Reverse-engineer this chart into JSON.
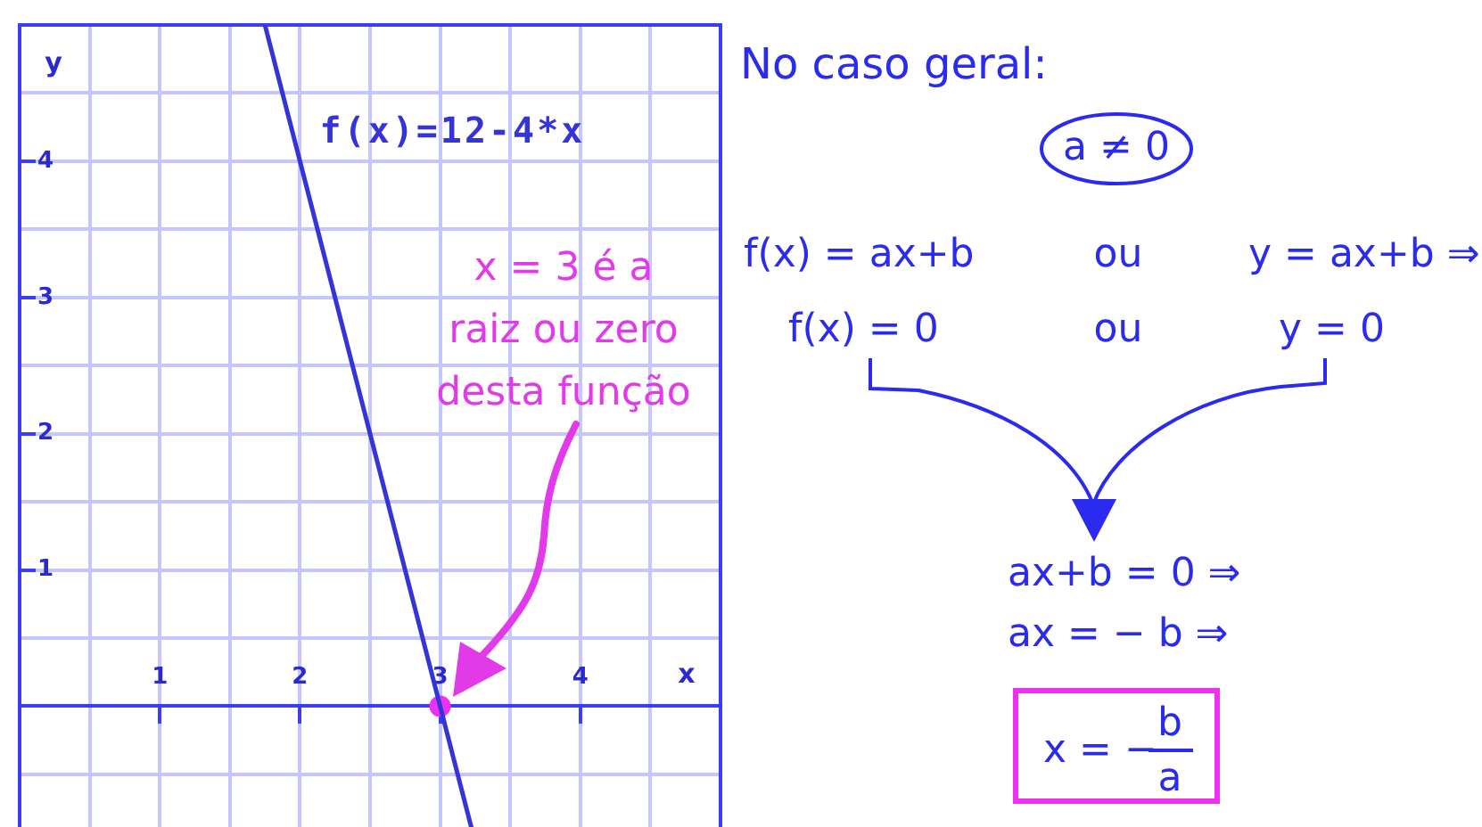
{
  "chart_data": [
    {
      "type": "line",
      "xlabel": "x",
      "ylabel": "y",
      "xlim": [
        0,
        5
      ],
      "ylim": [
        -0.9,
        5
      ],
      "xticks": [
        {
          "value": 0,
          "label": null
        },
        {
          "value": 0.5,
          "label": null
        },
        1,
        {
          "value": 1.5,
          "label": null
        },
        2,
        {
          "value": 2.5,
          "label": null
        },
        3,
        {
          "value": 3.5,
          "label": null
        },
        4,
        {
          "value": 4.5,
          "label": null
        },
        {
          "value": 5,
          "label": null
        }
      ],
      "yticks": [
        {
          "value": -0.5,
          "label": null
        },
        {
          "value": 0,
          "label": null
        },
        {
          "value": 0.5,
          "label": null
        },
        1,
        {
          "value": 1.5,
          "label": null
        },
        2,
        {
          "value": 2.5,
          "label": null
        },
        3,
        {
          "value": 3.5,
          "label": null
        },
        4,
        {
          "value": 4.5,
          "label": null
        },
        {
          "value": 5,
          "label": null
        }
      ],
      "grid": true,
      "marker": "none",
      "line_style": "solid",
      "series": [
        {
          "name": "f(x)=12-4*x",
          "color": "#3434d8",
          "x": [
            1.75,
            3.225
          ],
          "values": [
            5,
            -0.9
          ]
        },
        {
          "type": "scatter",
          "color": "#f030f0",
          "x": [
            3
          ],
          "values": [
            0
          ],
          "marker": "circle"
        }
      ],
      "annotations": [
        "x = 3 é a raiz ou zero desta função"
      ]
    },
    {
      "type": "other",
      "title": "No caso geral:",
      "annotations": [
        "a ≠ 0",
        "f(x) = ax+b",
        "ou",
        "y = ax+b ⇒",
        "f(x) = 0",
        "ou",
        "y = 0",
        "ax+b = 0 ⇒",
        "ax = − b ⇒",
        "x = −",
        "b",
        "a"
      ]
    }
  ]
}
